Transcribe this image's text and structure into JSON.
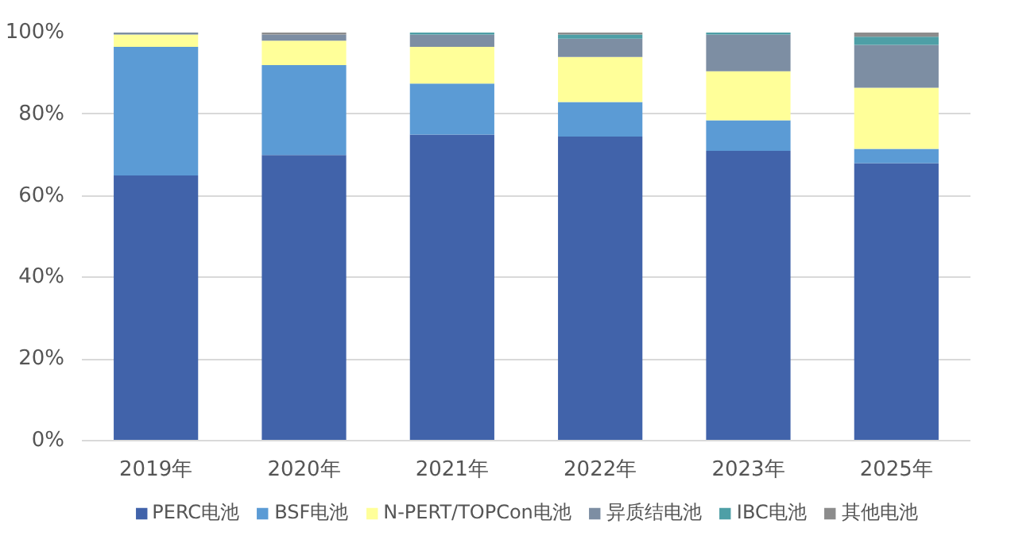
{
  "chart_data": {
    "type": "bar",
    "stacked": true,
    "categories": [
      "2019年",
      "2020年",
      "2021年",
      "2022年",
      "2023年",
      "2025年"
    ],
    "series": [
      {
        "name": "PERC电池",
        "color": "#4163aa",
        "values": [
          65,
          70,
          75,
          74.5,
          71,
          68
        ]
      },
      {
        "name": "BSF电池",
        "color": "#5b9bd5",
        "values": [
          31.5,
          22,
          12.5,
          8.5,
          7.5,
          3.5
        ]
      },
      {
        "name": "N-PERT/TOPCon电池",
        "color": "#ffff99",
        "values": [
          3,
          6,
          9,
          11,
          12,
          15
        ]
      },
      {
        "name": "异质结电池",
        "color": "#7d8ea3",
        "values": [
          0.5,
          1.5,
          3,
          4.5,
          9,
          10.5
        ]
      },
      {
        "name": "IBC电池",
        "color": "#4e9fa6",
        "values": [
          0,
          0,
          0.5,
          1,
          0.5,
          2
        ]
      },
      {
        "name": "其他电池",
        "color": "#8c8c8c",
        "values": [
          0,
          0.5,
          0,
          0.5,
          0,
          1
        ]
      }
    ],
    "ylim": [
      0,
      100
    ],
    "yticks": [
      {
        "value": 0,
        "label": "0%"
      },
      {
        "value": 20,
        "label": "20%"
      },
      {
        "value": 40,
        "label": "40%"
      },
      {
        "value": 60,
        "label": "60%"
      },
      {
        "value": 80,
        "label": "80%"
      },
      {
        "value": 100,
        "label": "100%"
      }
    ],
    "grid": "y",
    "legend": "bottom"
  }
}
